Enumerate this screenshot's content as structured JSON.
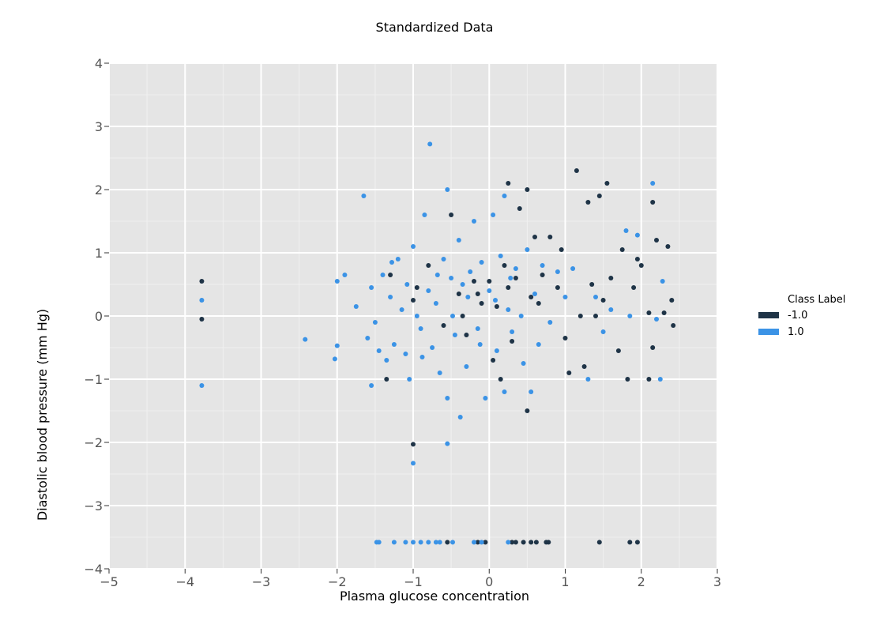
{
  "chart_data": {
    "type": "scatter",
    "title": "Standardized Data",
    "xlabel": "Plasma glucose concentration",
    "ylabel": "Diastolic blood pressure (mm Hg)",
    "xlim": [
      -5,
      3
    ],
    "ylim": [
      -4,
      4
    ],
    "xticks": [
      -5,
      -4,
      -3,
      -2,
      -1,
      0,
      1,
      2,
      3
    ],
    "yticks": [
      -4,
      -3,
      -2,
      -1,
      0,
      1,
      2,
      3,
      4
    ],
    "xtick_labels": [
      "−5",
      "−4",
      "−3",
      "−2",
      "−1",
      "0",
      "1",
      "2",
      "3"
    ],
    "ytick_labels": [
      "−4",
      "−3",
      "−2",
      "−1",
      "0",
      "1",
      "2",
      "3",
      "4"
    ],
    "grid": true,
    "legend": {
      "title": "Class Label",
      "placement": "right",
      "entries": [
        {
          "label": "-1.0",
          "color": "#1f3447"
        },
        {
          "label": "1.0",
          "color": "#3b93e6"
        }
      ]
    },
    "colors": {
      "background": "#e5e5e5",
      "grid": "#ffffff"
    },
    "series": [
      {
        "name": "-1.0",
        "color": "#1f3447",
        "points": [
          [
            -3.78,
            0.55
          ],
          [
            -3.78,
            -0.05
          ],
          [
            -1.3,
            0.65
          ],
          [
            -1.35,
            -1.0
          ],
          [
            -1.0,
            -2.03
          ],
          [
            -0.95,
            0.45
          ],
          [
            -0.8,
            0.8
          ],
          [
            -0.5,
            1.6
          ],
          [
            -0.4,
            0.35
          ],
          [
            -0.35,
            0.0
          ],
          [
            -0.3,
            -0.3
          ],
          [
            -0.2,
            0.55
          ],
          [
            -0.1,
            0.2
          ],
          [
            0.0,
            0.55
          ],
          [
            0.05,
            -0.7
          ],
          [
            0.1,
            0.15
          ],
          [
            0.15,
            -1.0
          ],
          [
            0.2,
            0.8
          ],
          [
            0.25,
            2.1
          ],
          [
            0.3,
            -0.4
          ],
          [
            0.35,
            0.6
          ],
          [
            0.4,
            1.7
          ],
          [
            0.5,
            2.0
          ],
          [
            0.5,
            -1.5
          ],
          [
            0.55,
            0.3
          ],
          [
            0.6,
            1.25
          ],
          [
            0.7,
            0.65
          ],
          [
            0.8,
            1.25
          ],
          [
            0.9,
            0.45
          ],
          [
            1.0,
            -0.35
          ],
          [
            1.05,
            -0.9
          ],
          [
            1.15,
            2.3
          ],
          [
            1.2,
            0.0
          ],
          [
            1.25,
            -0.8
          ],
          [
            1.3,
            1.8
          ],
          [
            1.35,
            0.5
          ],
          [
            1.45,
            1.9
          ],
          [
            1.5,
            0.25
          ],
          [
            1.55,
            2.1
          ],
          [
            1.6,
            0.6
          ],
          [
            1.7,
            -0.55
          ],
          [
            1.75,
            1.05
          ],
          [
            1.82,
            -1.0
          ],
          [
            1.9,
            0.45
          ],
          [
            2.0,
            0.8
          ],
          [
            2.1,
            -1.0
          ],
          [
            2.15,
            1.8
          ],
          [
            2.15,
            -0.5
          ],
          [
            2.2,
            1.2
          ],
          [
            2.3,
            0.05
          ],
          [
            2.35,
            1.1
          ],
          [
            2.4,
            0.25
          ],
          [
            2.42,
            -0.15
          ],
          [
            2.1,
            0.05
          ],
          [
            1.95,
            0.9
          ],
          [
            1.4,
            0.0
          ],
          [
            0.95,
            1.05
          ],
          [
            0.65,
            0.2
          ],
          [
            0.25,
            0.45
          ],
          [
            -0.15,
            0.35
          ],
          [
            -0.6,
            -0.15
          ],
          [
            -1.0,
            0.25
          ],
          [
            -0.55,
            -3.58
          ],
          [
            -0.15,
            -3.58
          ],
          [
            -0.05,
            -3.58
          ],
          [
            0.3,
            -3.58
          ],
          [
            0.35,
            -3.58
          ],
          [
            0.45,
            -3.58
          ],
          [
            0.55,
            -3.58
          ],
          [
            0.62,
            -3.58
          ],
          [
            0.75,
            -3.58
          ],
          [
            0.78,
            -3.58
          ],
          [
            1.45,
            -3.58
          ],
          [
            1.85,
            -3.58
          ],
          [
            1.95,
            -3.58
          ]
        ]
      },
      {
        "name": "1.0",
        "color": "#3b93e6",
        "points": [
          [
            -3.78,
            0.25
          ],
          [
            -3.78,
            -1.1
          ],
          [
            -2.42,
            -0.37
          ],
          [
            -2.0,
            -0.47
          ],
          [
            -2.03,
            -0.68
          ],
          [
            -2.0,
            0.55
          ],
          [
            -1.65,
            1.9
          ],
          [
            -1.55,
            0.45
          ],
          [
            -1.5,
            -0.1
          ],
          [
            -1.45,
            -0.55
          ],
          [
            -1.4,
            0.65
          ],
          [
            -1.3,
            0.3
          ],
          [
            -1.25,
            -0.45
          ],
          [
            -1.2,
            0.9
          ],
          [
            -1.15,
            0.1
          ],
          [
            -1.1,
            -0.6
          ],
          [
            -1.05,
            -1.0
          ],
          [
            -1.0,
            1.1
          ],
          [
            -0.95,
            0.0
          ],
          [
            -0.9,
            -0.2
          ],
          [
            -0.85,
            1.6
          ],
          [
            -0.8,
            0.4
          ],
          [
            -0.78,
            2.72
          ],
          [
            -0.75,
            -0.5
          ],
          [
            -0.7,
            0.2
          ],
          [
            -0.65,
            -0.9
          ],
          [
            -0.6,
            0.9
          ],
          [
            -0.55,
            2.0
          ],
          [
            -0.55,
            -1.3
          ],
          [
            -0.55,
            -2.02
          ],
          [
            -0.5,
            0.6
          ],
          [
            -0.45,
            -0.3
          ],
          [
            -0.4,
            1.2
          ],
          [
            -0.38,
            -1.6
          ],
          [
            -0.35,
            0.5
          ],
          [
            -0.3,
            -0.8
          ],
          [
            -0.25,
            0.7
          ],
          [
            -0.2,
            1.5
          ],
          [
            -0.15,
            -0.2
          ],
          [
            -0.1,
            0.85
          ],
          [
            -0.05,
            -1.3
          ],
          [
            0.0,
            0.4
          ],
          [
            0.05,
            1.6
          ],
          [
            0.1,
            -0.55
          ],
          [
            0.15,
            0.95
          ],
          [
            0.2,
            1.9
          ],
          [
            0.2,
            -1.2
          ],
          [
            0.25,
            0.1
          ],
          [
            0.3,
            -0.25
          ],
          [
            0.35,
            0.75
          ],
          [
            0.45,
            -0.75
          ],
          [
            0.5,
            1.05
          ],
          [
            0.55,
            -1.2
          ],
          [
            0.6,
            0.35
          ],
          [
            0.65,
            -0.45
          ],
          [
            0.7,
            0.8
          ],
          [
            0.8,
            -0.1
          ],
          [
            0.9,
            0.7
          ],
          [
            1.0,
            0.3
          ],
          [
            1.1,
            0.75
          ],
          [
            1.3,
            -1.0
          ],
          [
            1.4,
            0.3
          ],
          [
            1.5,
            -0.25
          ],
          [
            1.6,
            0.1
          ],
          [
            1.8,
            1.35
          ],
          [
            1.85,
            0.0
          ],
          [
            1.95,
            1.28
          ],
          [
            2.2,
            -0.05
          ],
          [
            2.25,
            -1.0
          ],
          [
            2.28,
            0.55
          ],
          [
            2.15,
            2.1
          ],
          [
            -1.75,
            0.15
          ],
          [
            -1.9,
            0.65
          ],
          [
            -1.6,
            -0.35
          ],
          [
            -1.55,
            -1.1
          ],
          [
            -1.35,
            -0.7
          ],
          [
            -1.28,
            0.85
          ],
          [
            -1.08,
            0.5
          ],
          [
            -0.88,
            -0.65
          ],
          [
            -0.68,
            0.65
          ],
          [
            -0.48,
            0.0
          ],
          [
            -0.28,
            0.3
          ],
          [
            -0.12,
            -0.45
          ],
          [
            0.08,
            0.25
          ],
          [
            0.28,
            0.6
          ],
          [
            0.42,
            0.0
          ],
          [
            -1.0,
            -2.33
          ],
          [
            -1.48,
            -3.58
          ],
          [
            -1.45,
            -3.58
          ],
          [
            -1.25,
            -3.58
          ],
          [
            -1.1,
            -3.58
          ],
          [
            -1.0,
            -3.58
          ],
          [
            -0.9,
            -3.58
          ],
          [
            -0.8,
            -3.58
          ],
          [
            -0.7,
            -3.58
          ],
          [
            -0.65,
            -3.58
          ],
          [
            -0.48,
            -3.58
          ],
          [
            -0.2,
            -3.58
          ],
          [
            -0.1,
            -3.58
          ],
          [
            0.25,
            -3.58
          ]
        ]
      }
    ]
  }
}
